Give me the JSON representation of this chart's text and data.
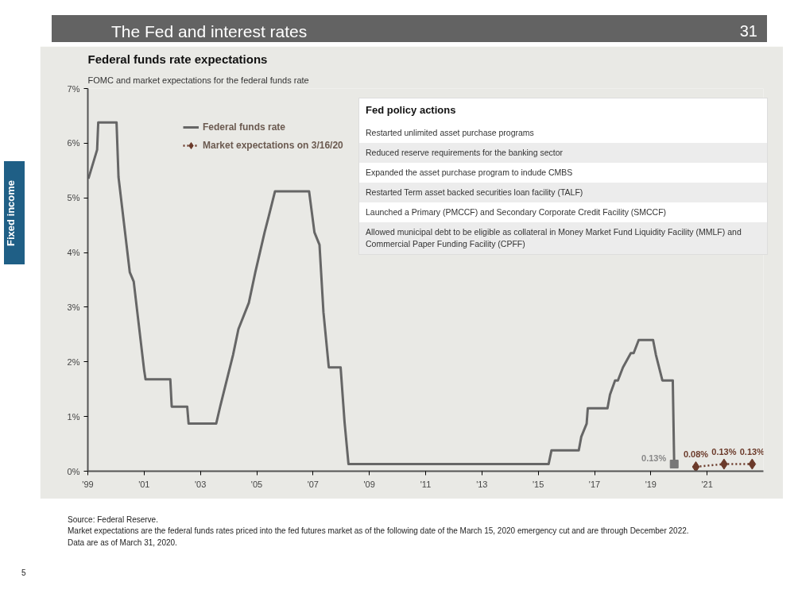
{
  "chart_data": [
    {
      "type": "line",
      "title": "Federal funds rate expectations",
      "subtitle": "FOMC and market expectations for the federal funds rate",
      "xlim": [
        1999,
        2023
      ],
      "ylim": [
        0,
        7
      ],
      "xticks": [
        {
          "value": 1999,
          "label": "'99"
        },
        {
          "value": 2001,
          "label": "'01"
        },
        {
          "value": 2003,
          "label": "'03"
        },
        {
          "value": 2005,
          "label": "'05"
        },
        {
          "value": 2007,
          "label": "'07"
        },
        {
          "value": 2009,
          "label": "'09"
        },
        {
          "value": 2011,
          "label": "'11"
        },
        {
          "value": 2013,
          "label": "'13"
        },
        {
          "value": 2015,
          "label": "'15"
        },
        {
          "value": 2017,
          "label": "'17"
        },
        {
          "value": 2019,
          "label": "'19"
        },
        {
          "value": 2021,
          "label": "'21"
        }
      ],
      "yticks": [
        {
          "value": 0,
          "label": "0%"
        },
        {
          "value": 1,
          "label": "1%"
        },
        {
          "value": 2,
          "label": "2%"
        },
        {
          "value": 3,
          "label": "3%"
        },
        {
          "value": 4,
          "label": "4%"
        },
        {
          "value": 5,
          "label": "5%"
        },
        {
          "value": 6,
          "label": "6%"
        },
        {
          "value": 7,
          "label": "7%"
        }
      ],
      "legend": "top left",
      "series": [
        {
          "name": "Federal funds rate",
          "type": "line",
          "color": "#666666",
          "marker": "none",
          "line_style": "solid",
          "x": [
            1999.02,
            1999.33,
            1999.37,
            2000.02,
            2000.09,
            2000.49,
            2000.63,
            2001.0,
            2001.05,
            2001.93,
            2001.98,
            2002.53,
            2002.58,
            2003.56,
            2003.7,
            2004.16,
            2004.35,
            2004.72,
            2004.95,
            2005.28,
            2005.42,
            2005.65,
            2006.86,
            2007.05,
            2007.23,
            2007.37,
            2007.56,
            2007.98,
            2008.12,
            2008.26,
            2015.37,
            2015.47,
            2016.44,
            2016.53,
            2016.72,
            2016.76,
            2017.46,
            2017.55,
            2017.73,
            2017.83,
            2018.01,
            2018.29,
            2018.39,
            2018.57,
            2019.08,
            2019.18,
            2019.41,
            2019.78,
            2019.83
          ],
          "values": [
            5.35,
            5.88,
            6.38,
            6.38,
            5.38,
            3.64,
            3.47,
            1.85,
            1.68,
            1.68,
            1.18,
            1.18,
            0.87,
            0.87,
            1.18,
            2.13,
            2.6,
            3.08,
            3.64,
            4.37,
            4.65,
            5.12,
            5.12,
            4.37,
            4.14,
            2.91,
            1.9,
            1.9,
            0.9,
            0.13,
            0.13,
            0.38,
            0.38,
            0.63,
            0.87,
            1.15,
            1.15,
            1.4,
            1.66,
            1.66,
            1.9,
            2.16,
            2.16,
            2.4,
            2.4,
            2.13,
            1.66,
            1.66,
            0.13
          ]
        },
        {
          "name": "Market expectations on 3/16/20",
          "type": "line",
          "color": "#6b3a2a",
          "marker": "diamond",
          "line_style": "dotted",
          "x": [
            2020.6,
            2021.6,
            2022.6
          ],
          "values": [
            0.08,
            0.13,
            0.13
          ],
          "value_labels": [
            "0.08%",
            "0.13%",
            "0.13%"
          ]
        }
      ],
      "annotations": [
        {
          "text": "0.13%",
          "x": 2019.83,
          "y": 0.13
        },
        "The Fed and interest rates",
        "31",
        "Fixed income",
        "5",
        "Source: Federal Reserve.",
        "Market expectations are the federal funds rates priced into the fed futures market as of the following date of the March 15, 2020 emergency cut and are through December 2022.",
        "Data are as of March 31, 2020."
      ]
    },
    {
      "type": "other",
      "title": "Fed policy actions",
      "annotations": [
        "Restarted unlimited asset purchase programs",
        "Reduced reserve requirements for the banking sector",
        "Expanded the asset purchase program to indude CMBS",
        "Restarted Term asset backed securities loan facility (TALF)",
        "Launched a Primary (PMCCF) and Secondary Corporate Credit Facility (SMCCF)",
        "Allowed municipal debt to be eligible as collateral in Money Market Fund Liquidity Facility (MMLF) and Commercial Paper Funding Facility (CPFF)"
      ]
    }
  ]
}
